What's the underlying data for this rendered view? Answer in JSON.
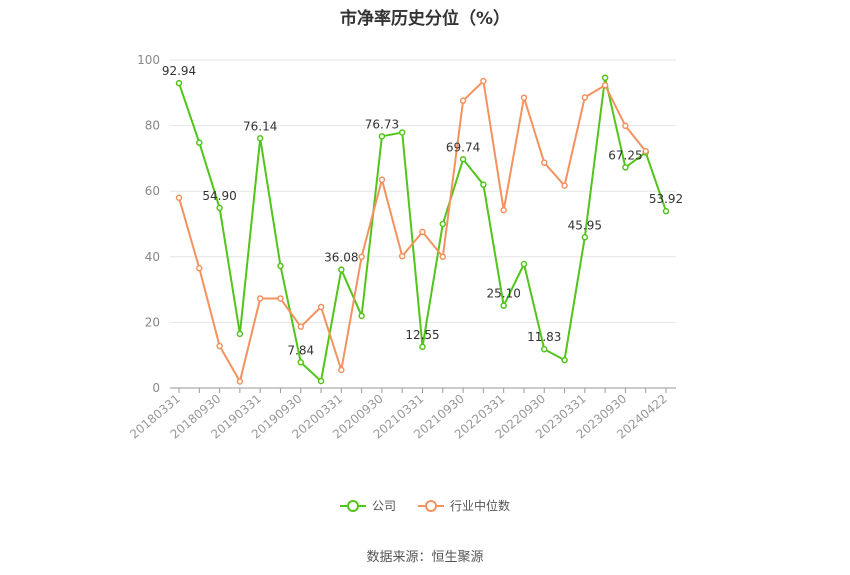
{
  "chart_data": {
    "type": "line",
    "title": "市净率历史分位（%）",
    "xlabel": "",
    "ylabel": "",
    "ylim": [
      0,
      100
    ],
    "yticks": [
      0,
      20,
      40,
      60,
      80,
      100
    ],
    "grid": true,
    "legend_position": "bottom",
    "x_tick_labels": [
      "20180331",
      "20180930",
      "20190331",
      "20190930",
      "20200331",
      "20200930",
      "20210331",
      "20210930",
      "20220331",
      "20220930",
      "20230331",
      "20230930",
      "20240422"
    ],
    "x": [
      "20180331",
      "20180630",
      "20180930",
      "20181231",
      "20190331",
      "20190630",
      "20190930",
      "20191231",
      "20200331",
      "20200630",
      "20200930",
      "20201231",
      "20210331",
      "20210630",
      "20210930",
      "20211231",
      "20220331",
      "20220630",
      "20220930",
      "20221231",
      "20230331",
      "20230630",
      "20230930",
      "20231231",
      "20240422"
    ],
    "series": [
      {
        "name": "公司",
        "color": "#52c41a",
        "values": [
          92.94,
          74.8,
          54.9,
          16.5,
          76.14,
          37.2,
          7.84,
          2.1,
          36.08,
          22.0,
          76.73,
          77.9,
          12.55,
          50.0,
          69.74,
          62.0,
          25.1,
          37.8,
          11.83,
          8.5,
          45.95,
          94.6,
          67.25,
          71.8,
          53.92
        ],
        "labels": {
          "0": "92.94",
          "2": "54.90",
          "4": "76.14",
          "6": "7.84",
          "8": "36.08",
          "10": "76.73",
          "12": "12.55",
          "14": "69.74",
          "16": "25.10",
          "18": "11.83",
          "20": "45.95",
          "22": "67.25",
          "24": "53.92"
        }
      },
      {
        "name": "行业中位数",
        "color": "#f4925f",
        "values": [
          58.0,
          36.5,
          12.8,
          2.0,
          27.3,
          27.3,
          18.7,
          24.7,
          5.5,
          40.0,
          63.5,
          40.2,
          47.6,
          40.0,
          87.6,
          93.6,
          54.2,
          88.5,
          68.7,
          61.7,
          88.6,
          92.3,
          79.9,
          72.2,
          null
        ]
      }
    ]
  },
  "source_note": "数据来源：恒生聚源"
}
